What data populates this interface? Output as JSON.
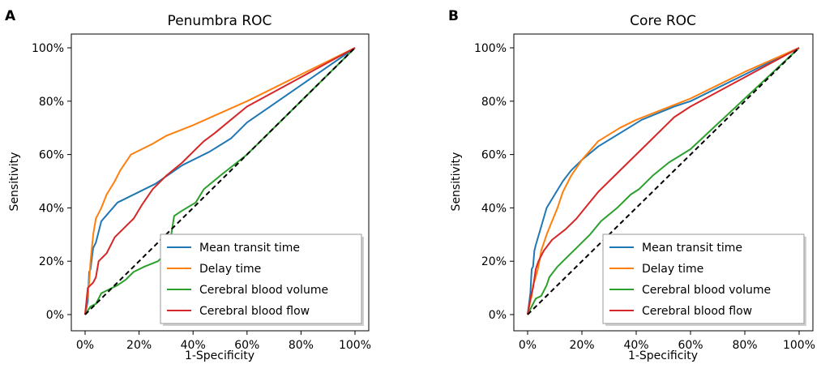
{
  "chart_data": [
    {
      "type": "line",
      "panel_label": "A",
      "title": "Penumbra ROC",
      "xlabel": "1-Specificity",
      "ylabel": "Sensitivity",
      "xlim": [
        0,
        100
      ],
      "ylim": [
        0,
        100
      ],
      "x_ticks": [
        "0%",
        "20%",
        "40%",
        "60%",
        "80%",
        "100%"
      ],
      "y_ticks": [
        "0%",
        "20%",
        "40%",
        "60%",
        "80%",
        "100%"
      ],
      "grid": false,
      "legend_position": "lower-right",
      "series": [
        {
          "name": "Mean transit time",
          "color": "#1f77b4",
          "points": [
            [
              0,
              0
            ],
            [
              1,
              5
            ],
            [
              1.5,
              16
            ],
            [
              2,
              17
            ],
            [
              2.5,
              21
            ],
            [
              3,
              25
            ],
            [
              4,
              27
            ],
            [
              6,
              35
            ],
            [
              12,
              42
            ],
            [
              20,
              46
            ],
            [
              26,
              49
            ],
            [
              36,
              56
            ],
            [
              46,
              61
            ],
            [
              54,
              66
            ],
            [
              60,
              72
            ],
            [
              80,
              86
            ],
            [
              100,
              100
            ]
          ]
        },
        {
          "name": "Delay time",
          "color": "#ff7f0e",
          "points": [
            [
              0,
              0
            ],
            [
              1,
              8
            ],
            [
              1.5,
              12
            ],
            [
              2,
              20
            ],
            [
              3,
              30
            ],
            [
              4,
              36
            ],
            [
              6,
              40
            ],
            [
              8,
              45
            ],
            [
              11,
              50
            ],
            [
              13,
              54
            ],
            [
              17,
              60
            ],
            [
              25,
              64
            ],
            [
              30,
              67
            ],
            [
              40,
              71
            ],
            [
              60,
              80
            ],
            [
              80,
              90
            ],
            [
              100,
              100
            ]
          ]
        },
        {
          "name": "Cerebral blood volume",
          "color": "#2ca02c",
          "points": [
            [
              0,
              0
            ],
            [
              2,
              3
            ],
            [
              4,
              4
            ],
            [
              6,
              8
            ],
            [
              8,
              9
            ],
            [
              10,
              10
            ],
            [
              12,
              11
            ],
            [
              15,
              13
            ],
            [
              18,
              16
            ],
            [
              22,
              18
            ],
            [
              27,
              20
            ],
            [
              31,
              24
            ],
            [
              33,
              37
            ],
            [
              36,
              39
            ],
            [
              41,
              42
            ],
            [
              44,
              47
            ],
            [
              50,
              52
            ],
            [
              60,
              60
            ],
            [
              80,
              80
            ],
            [
              100,
              100
            ]
          ]
        },
        {
          "name": "Cerebral blood flow",
          "color": "#d62728",
          "points": [
            [
              0,
              0
            ],
            [
              1,
              10
            ],
            [
              3,
              12
            ],
            [
              4,
              14
            ],
            [
              5,
              20
            ],
            [
              8,
              23
            ],
            [
              11,
              29
            ],
            [
              15,
              33
            ],
            [
              18,
              36
            ],
            [
              21,
              41
            ],
            [
              25,
              47
            ],
            [
              30,
              52
            ],
            [
              36,
              57
            ],
            [
              41,
              62
            ],
            [
              44,
              65
            ],
            [
              48,
              68
            ],
            [
              54,
              73
            ],
            [
              60,
              78
            ],
            [
              80,
              89
            ],
            [
              100,
              100
            ]
          ]
        },
        {
          "name": "",
          "color": "#000000",
          "dashed": true,
          "points": [
            [
              0,
              0
            ],
            [
              100,
              100
            ]
          ]
        }
      ]
    },
    {
      "type": "line",
      "panel_label": "B",
      "title": "Core ROC",
      "xlabel": "1-Specificity",
      "ylabel": "Sensitivity",
      "xlim": [
        0,
        100
      ],
      "ylim": [
        0,
        100
      ],
      "x_ticks": [
        "0%",
        "20%",
        "40%",
        "60%",
        "80%",
        "100%"
      ],
      "y_ticks": [
        "0%",
        "20%",
        "40%",
        "60%",
        "80%",
        "100%"
      ],
      "grid": false,
      "legend_position": "lower-right",
      "series": [
        {
          "name": "Mean transit time",
          "color": "#1f77b4",
          "points": [
            [
              0,
              0
            ],
            [
              1,
              8
            ],
            [
              1.5,
              17
            ],
            [
              2,
              18
            ],
            [
              2.5,
              24
            ],
            [
              3,
              26
            ],
            [
              5,
              33
            ],
            [
              7,
              40
            ],
            [
              10,
              45
            ],
            [
              13,
              50
            ],
            [
              16,
              54
            ],
            [
              20,
              58
            ],
            [
              26,
              63
            ],
            [
              34,
              68
            ],
            [
              42,
              73
            ],
            [
              54,
              78
            ],
            [
              60,
              80
            ],
            [
              80,
              90
            ],
            [
              100,
              100
            ]
          ]
        },
        {
          "name": "Delay time",
          "color": "#ff7f0e",
          "points": [
            [
              0,
              0
            ],
            [
              1,
              5
            ],
            [
              1.5,
              7
            ],
            [
              2,
              11
            ],
            [
              3,
              14
            ],
            [
              4,
              18
            ],
            [
              5,
              24
            ],
            [
              7,
              30
            ],
            [
              9,
              35
            ],
            [
              11,
              40
            ],
            [
              13,
              46
            ],
            [
              16,
              52
            ],
            [
              20,
              58
            ],
            [
              26,
              65
            ],
            [
              34,
              70
            ],
            [
              40,
              73
            ],
            [
              55,
              79
            ],
            [
              60,
              81
            ],
            [
              80,
              91
            ],
            [
              100,
              100
            ]
          ]
        },
        {
          "name": "Cerebral blood volume",
          "color": "#2ca02c",
          "points": [
            [
              0,
              0
            ],
            [
              1,
              2
            ],
            [
              2,
              4
            ],
            [
              3,
              6
            ],
            [
              5,
              7
            ],
            [
              7,
              11
            ],
            [
              8,
              14
            ],
            [
              11,
              18
            ],
            [
              15,
              22
            ],
            [
              18,
              25
            ],
            [
              23,
              30
            ],
            [
              27,
              35
            ],
            [
              33,
              40
            ],
            [
              38,
              45
            ],
            [
              41,
              47
            ],
            [
              46,
              52
            ],
            [
              52,
              57
            ],
            [
              60,
              62
            ],
            [
              80,
              81
            ],
            [
              100,
              100
            ]
          ]
        },
        {
          "name": "Cerebral blood flow",
          "color": "#d62728",
          "points": [
            [
              0,
              0
            ],
            [
              1,
              6
            ],
            [
              1.5,
              8
            ],
            [
              2,
              10
            ],
            [
              3,
              17
            ],
            [
              4,
              20
            ],
            [
              6,
              24
            ],
            [
              9,
              28
            ],
            [
              14,
              32
            ],
            [
              18,
              36
            ],
            [
              22,
              41
            ],
            [
              26,
              46
            ],
            [
              30,
              50
            ],
            [
              35,
              55
            ],
            [
              40,
              60
            ],
            [
              46,
              66
            ],
            [
              50,
              70
            ],
            [
              54,
              74
            ],
            [
              60,
              78
            ],
            [
              80,
              89
            ],
            [
              100,
              100
            ]
          ]
        },
        {
          "name": "",
          "color": "#000000",
          "dashed": true,
          "points": [
            [
              0,
              0
            ],
            [
              100,
              100
            ]
          ]
        }
      ]
    }
  ]
}
